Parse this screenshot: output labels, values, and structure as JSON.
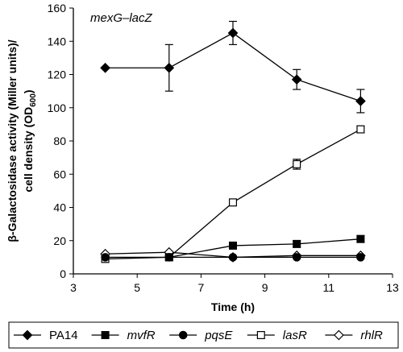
{
  "chart_data": {
    "type": "line",
    "title": "",
    "annotation": "mexG–lacZ",
    "xlabel": "Time (h)",
    "ylabel_line1": "β-Galactosidase activity (Miller units)/",
    "ylabel_line2": "cell density (OD",
    "ylabel_sub": "600",
    "ylabel_close": ")",
    "xlim": [
      3,
      13
    ],
    "ylim": [
      0,
      160
    ],
    "xticks": [
      3,
      5,
      7,
      9,
      11,
      13
    ],
    "yticks": [
      0,
      20,
      40,
      60,
      80,
      100,
      120,
      140,
      160
    ],
    "grid": false,
    "legend_position": "bottom",
    "x": [
      4,
      6,
      8,
      10,
      12
    ],
    "series": [
      {
        "name": "PA14",
        "italic": false,
        "marker": "diamond",
        "filled": true,
        "values": [
          124,
          124,
          145,
          117,
          104
        ],
        "errors": [
          0,
          14,
          7,
          6,
          7
        ]
      },
      {
        "name": "mvfR",
        "italic": true,
        "marker": "square",
        "filled": true,
        "values": [
          null,
          10,
          17,
          18,
          21
        ],
        "errors": [
          0,
          0,
          2,
          2,
          2
        ]
      },
      {
        "name": "pqsE",
        "italic": true,
        "marker": "circle",
        "filled": true,
        "values": [
          10,
          10,
          10,
          10,
          10
        ],
        "errors": [
          0,
          0,
          0,
          0,
          0
        ]
      },
      {
        "name": "lasR",
        "italic": true,
        "marker": "square",
        "filled": false,
        "values": [
          9,
          10,
          43,
          66,
          87
        ],
        "errors": [
          0,
          0,
          1,
          3,
          2
        ]
      },
      {
        "name": "rhlR",
        "italic": true,
        "marker": "diamond",
        "filled": false,
        "values": [
          12,
          13,
          10,
          11,
          11
        ],
        "errors": [
          0,
          0,
          0,
          0,
          0
        ]
      }
    ]
  }
}
